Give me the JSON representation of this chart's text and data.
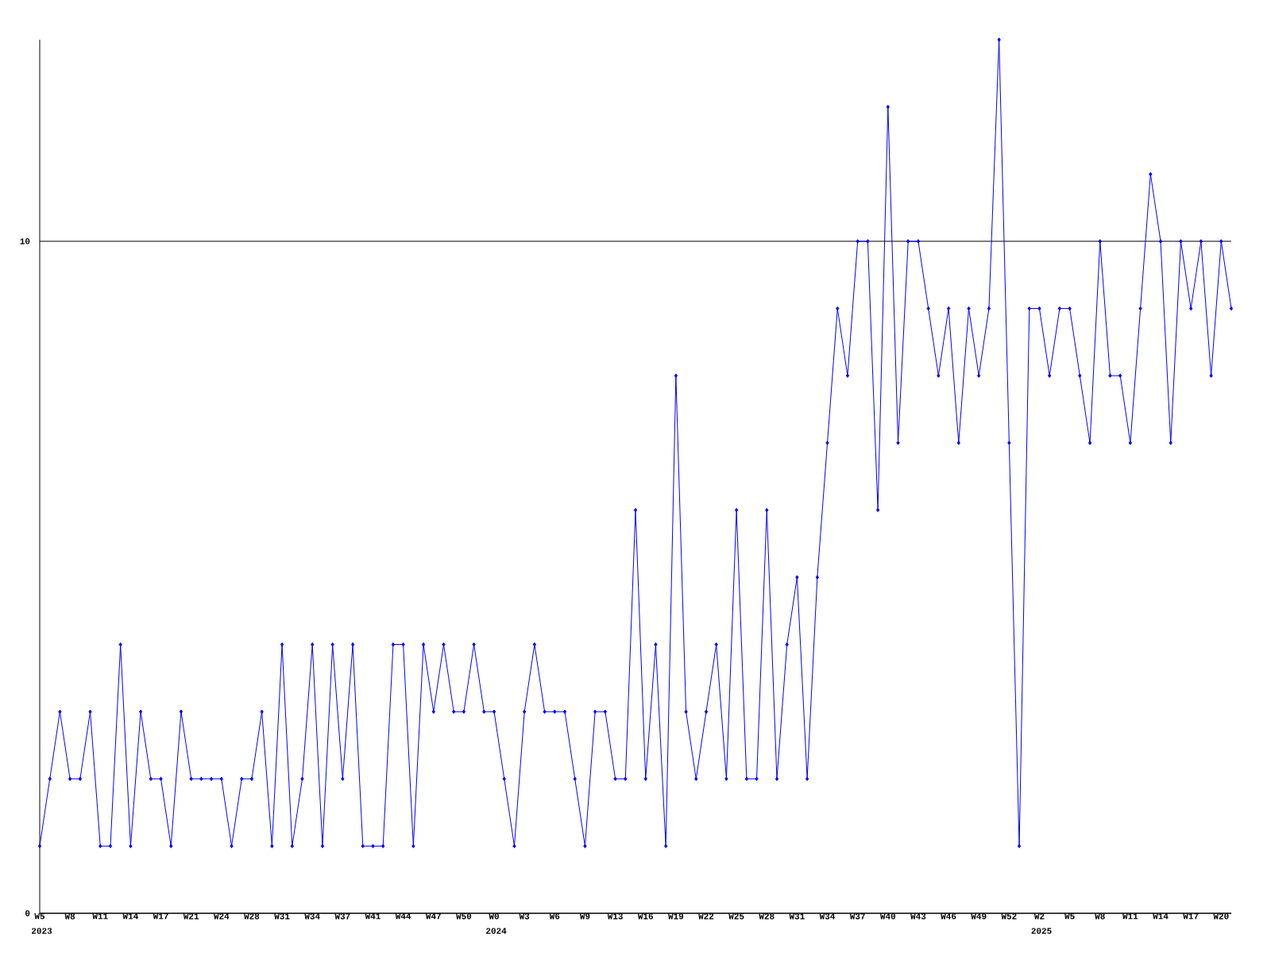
{
  "chart_data": {
    "type": "line",
    "categories": [
      "W5",
      null,
      null,
      "W8",
      null,
      null,
      "W11",
      null,
      null,
      "W14",
      null,
      null,
      "W17",
      null,
      null,
      "W21",
      null,
      null,
      "W24",
      null,
      null,
      "W28",
      null,
      null,
      "W31",
      null,
      null,
      "W34",
      null,
      null,
      "W37",
      null,
      null,
      "W41",
      null,
      null,
      "W44",
      null,
      null,
      "W47",
      null,
      null,
      "W50",
      null,
      null,
      "W0",
      null,
      null,
      "W3",
      null,
      null,
      "W6",
      null,
      null,
      "W9",
      null,
      null,
      "W13",
      null,
      null,
      "W16",
      null,
      null,
      "W19",
      null,
      null,
      "W22",
      null,
      null,
      "W25",
      null,
      null,
      "W28",
      null,
      null,
      "W31",
      null,
      null,
      "W34",
      null,
      null,
      "W37",
      null,
      null,
      "W40",
      null,
      null,
      "W43",
      null,
      null,
      "W46",
      null,
      null,
      "W49",
      null,
      null,
      "W52",
      null,
      null,
      "W2",
      null,
      null,
      "W5",
      null,
      null,
      "W8",
      null,
      null,
      "W11",
      null,
      null,
      "W14",
      null,
      null,
      "W17",
      null,
      null,
      "W20",
      null
    ],
    "values": [
      1,
      2,
      3,
      2,
      2,
      3,
      1,
      1,
      4,
      1,
      3,
      2,
      2,
      1,
      3,
      2,
      2,
      2,
      2,
      1,
      2,
      2,
      3,
      1,
      4,
      1,
      2,
      4,
      1,
      4,
      2,
      4,
      1,
      1,
      1,
      4,
      4,
      1,
      4,
      3,
      4,
      3,
      3,
      4,
      3,
      3,
      2,
      1,
      3,
      4,
      3,
      3,
      3,
      2,
      1,
      3,
      3,
      2,
      2,
      6,
      2,
      4,
      1,
      8,
      3,
      2,
      3,
      4,
      2,
      6,
      2,
      2,
      6,
      2,
      4,
      5,
      2,
      5,
      7,
      9,
      8,
      10,
      10,
      6,
      12,
      7,
      10,
      10,
      9,
      8,
      9,
      7,
      9,
      8,
      9,
      13,
      7,
      1,
      9,
      9,
      8,
      9,
      9,
      8,
      7,
      10,
      8,
      8,
      7,
      9,
      11,
      10,
      7,
      10,
      9,
      10,
      8,
      10,
      9
    ],
    "color": "#0000ff",
    "marker": "diamond",
    "ylim": [
      0,
      13
    ],
    "yticks": [
      0,
      10
    ],
    "grid": "y",
    "annotations": [
      "2023",
      "2024",
      "2025"
    ]
  }
}
